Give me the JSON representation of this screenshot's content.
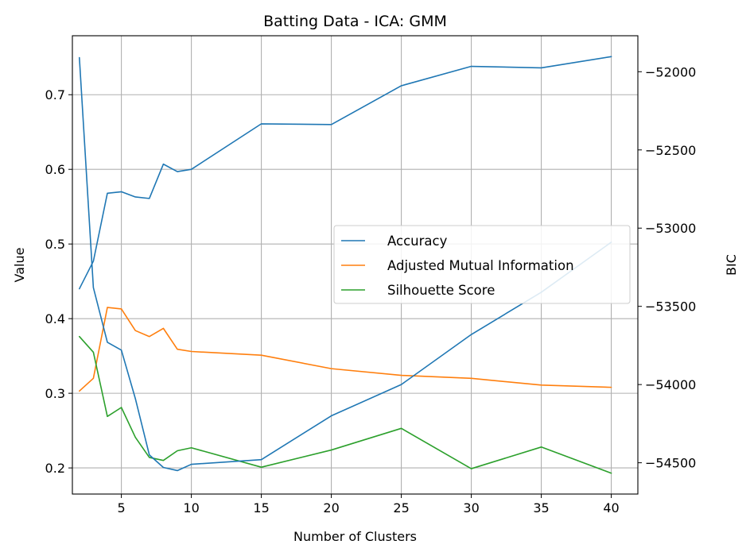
{
  "chart_data": {
    "type": "line",
    "title": "Batting Data - ICA: GMM",
    "xlabel": "Number of Clusters",
    "ylabel": "Value",
    "y2label": "BIC",
    "xlim": [
      1.5,
      41.9
    ],
    "ylim": [
      0.165,
      0.779
    ],
    "y2lim": [
      -54700,
      -51770
    ],
    "xticks": [
      5,
      10,
      15,
      20,
      25,
      30,
      35,
      40
    ],
    "yticks": [
      0.2,
      0.3,
      0.4,
      0.5,
      0.6,
      0.7
    ],
    "y2ticks": [
      -54500,
      -54000,
      -53500,
      -53000,
      -52500,
      -52000
    ],
    "y2tick_labels": [
      "−54500",
      "−54000",
      "−53500",
      "−53000",
      "−52500",
      "−52000"
    ],
    "grid": true,
    "legend_position": "center-right",
    "x": [
      2,
      3,
      4,
      5,
      6,
      7,
      8,
      9,
      10,
      15,
      20,
      25,
      30,
      35,
      40
    ],
    "series": [
      {
        "name": "Accuracy",
        "color": "#1f77b4",
        "axis": "left",
        "legend": true,
        "values": [
          0.44,
          0.477,
          0.568,
          0.57,
          0.563,
          0.561,
          0.607,
          0.597,
          0.6,
          0.661,
          0.66,
          0.712,
          0.738,
          0.736,
          0.751
        ]
      },
      {
        "name": "Adjusted Mutual Information",
        "color": "#ff7f0e",
        "axis": "left",
        "legend": true,
        "values": [
          0.303,
          0.32,
          0.415,
          0.413,
          0.384,
          0.376,
          0.387,
          0.359,
          0.356,
          0.351,
          0.333,
          0.324,
          0.32,
          0.311,
          0.308
        ]
      },
      {
        "name": "Silhouette Score",
        "color": "#2ca02c",
        "axis": "left",
        "legend": true,
        "values": [
          0.376,
          0.355,
          0.269,
          0.281,
          0.241,
          0.214,
          0.21,
          0.223,
          0.227,
          0.201,
          0.224,
          0.253,
          0.199,
          0.228,
          0.193
        ]
      },
      {
        "color": "#1f77b4",
        "axis": "right",
        "legend": false,
        "values": [
          -51910,
          -53380,
          -53730,
          -53780,
          -54090,
          -54450,
          -54530,
          -54550,
          -54510,
          -54480,
          -54200,
          -54000,
          -53680,
          -53410,
          -53090
        ]
      }
    ]
  }
}
